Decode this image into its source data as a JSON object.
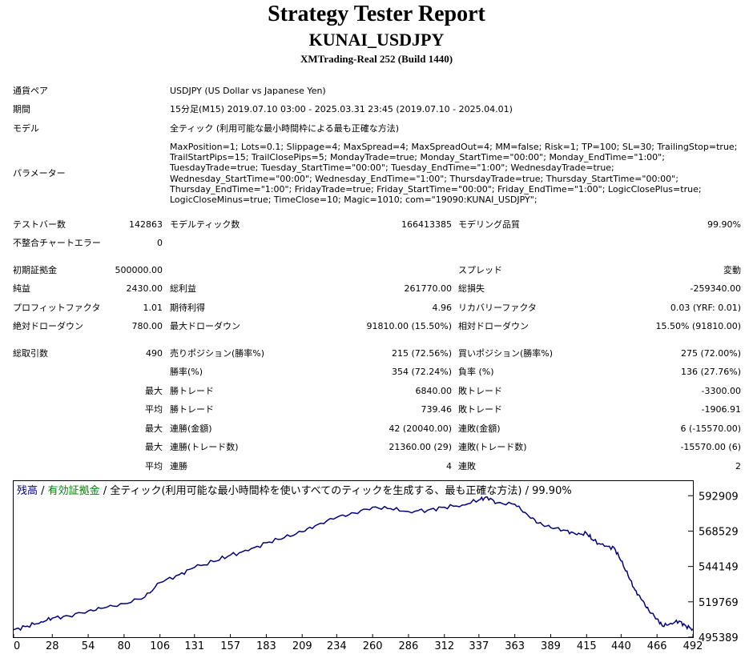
{
  "header": {
    "title": "Strategy Tester Report",
    "subtitle": "KUNAI_USDJPY",
    "broker": "XMTrading-Real 252 (Build 1440)"
  },
  "info": {
    "pair_label": "通貨ペア",
    "pair_value": "USDJPY (US Dollar vs Japanese Yen)",
    "period_label": "期間",
    "period_value": "15分足(M15) 2019.07.10 03:00 - 2025.03.31 23:45 (2019.07.10 - 2025.04.01)",
    "model_label": "モデル",
    "model_value": "全ティック (利用可能な最小時間枠による最も正確な方法)",
    "params_label": "パラメーター",
    "params_value": "MaxPosition=1; Lots=0.1; Slippage=4; MaxSpread=4; MaxSpreadOut=4; MM=false; Risk=1; TP=100; SL=30; TrailingStop=true; TrailStartPips=15; TrailClosePips=5; MondayTrade=true; Monday_StartTime=\"00:00\"; Monday_EndTime=\"1:00\"; TuesdayTrade=true; Tuesday_StartTime=\"00:00\"; Tuesday_EndTime=\"1:00\"; WednesdayTrade=true; Wednesday_StartTime=\"00:00\"; Wednesday_EndTime=\"1:00\"; ThursdayTrade=true; Thursday_StartTime=\"00:00\"; Thursday_EndTime=\"1:00\"; FridayTrade=true; Friday_StartTime=\"00:00\"; Friday_EndTime=\"1:00\"; LogicClosePlus=true; LogicCloseMinus=true; TimeClose=10; Magic=1010; com=\"19090:KUNAI_USDJPY\";"
  },
  "stats": {
    "bars_label": "テストバー数",
    "bars_value": "142863",
    "ticks_label": "モデルティック数",
    "ticks_value": "166413385",
    "quality_label": "モデリング品質",
    "quality_value": "99.90%",
    "mismatch_label": "不整合チャートエラー",
    "mismatch_value": "0",
    "deposit_label": "初期証拠金",
    "deposit_value": "500000.00",
    "spread_label": "スプレッド",
    "spread_value": "変動",
    "net_label": "純益",
    "net_value": "2430.00",
    "gross_profit_label": "総利益",
    "gross_profit_value": "261770.00",
    "gross_loss_label": "総損失",
    "gross_loss_value": "-259340.00",
    "pf_label": "プロフィットファクタ",
    "pf_value": "1.01",
    "payoff_label": "期待利得",
    "payoff_value": "4.96",
    "recovery_label": "リカバリーファクタ",
    "recovery_value": "0.03 (YRF: 0.01)",
    "abs_dd_label": "絶対ドローダウン",
    "abs_dd_value": "780.00",
    "max_dd_label": "最大ドローダウン",
    "max_dd_value": "91810.00 (15.50%)",
    "rel_dd_label": "相対ドローダウン",
    "rel_dd_value": "15.50% (91810.00)",
    "trades_label": "総取引数",
    "trades_value": "490",
    "short_label": "売りポジション(勝率%)",
    "short_value": "215 (72.56%)",
    "long_label": "買いポジション(勝率%)",
    "long_value": "275 (72.00%)",
    "win_label": "勝率(%)",
    "win_value": "354 (72.24%)",
    "loss_label": "負率 (%)",
    "loss_value": "136 (27.76%)",
    "max_label": "最大",
    "avg_label": "平均",
    "largest_win_label": "勝トレード",
    "largest_win_value": "6840.00",
    "largest_loss_label": "敗トレード",
    "largest_loss_value": "-3300.00",
    "avg_win_label": "勝トレード",
    "avg_win_value": "739.46",
    "avg_loss_label": "敗トレード",
    "avg_loss_value": "-1906.91",
    "max_consec_win_label": "連勝(金額)",
    "max_consec_win_value": "42 (20040.00)",
    "max_consec_loss_label": "連敗(金額)",
    "max_consec_loss_value": "6 (-15570.00)",
    "max_consec_profit_label": "連勝(トレード数)",
    "max_consec_profit_value": "21360.00 (29)",
    "max_consec_lossamt_label": "連敗(トレード数)",
    "max_consec_lossamt_value": "-15570.00 (6)",
    "avg_consec_win_label": "連勝",
    "avg_consec_win_value": "4",
    "avg_consec_loss_label": "連敗",
    "avg_consec_loss_value": "2"
  },
  "chart_data": {
    "type": "line",
    "legend": {
      "balance": "残高",
      "sep1": " / ",
      "equity": "有効証拠金",
      "rest": " / 全ティック(利用可能な最小時間枠を使いすべてのティックを生成する、最も正確な方法) / 99.90%"
    },
    "xlim": [
      0,
      492
    ],
    "ylim": [
      495389,
      603000
    ],
    "x_ticks": [
      0,
      28,
      54,
      80,
      106,
      131,
      157,
      183,
      209,
      234,
      260,
      286,
      312,
      337,
      363,
      389,
      415,
      440,
      466,
      492
    ],
    "y_ticks": [
      495389,
      519769,
      544149,
      568529,
      592909
    ],
    "series": [
      {
        "color": "#00007f",
        "x": [
          0,
          10,
          20,
          28,
          40,
          54,
          65,
          80,
          95,
          106,
          120,
          131,
          145,
          157,
          170,
          183,
          196,
          209,
          220,
          234,
          247,
          260,
          273,
          286,
          300,
          312,
          325,
          337,
          343,
          350,
          363,
          372,
          380,
          389,
          400,
          408,
          415,
          420,
          428,
          435,
          440,
          445,
          450,
          455,
          460,
          466,
          470,
          476,
          482,
          487,
          492
        ],
        "y": [
          500500,
          503000,
          506000,
          508500,
          510000,
          513500,
          515500,
          518500,
          523000,
          533000,
          538500,
          543500,
          547500,
          552000,
          555000,
          560500,
          564000,
          568000,
          573000,
          578000,
          581000,
          585000,
          584000,
          582000,
          583000,
          585000,
          586500,
          590000,
          592000,
          588000,
          587000,
          580000,
          574000,
          571000,
          569000,
          566000,
          567000,
          562000,
          558000,
          557000,
          548000,
          538000,
          528000,
          521000,
          514000,
          508000,
          503000,
          505000,
          506500,
          503000,
          501000
        ]
      }
    ]
  }
}
